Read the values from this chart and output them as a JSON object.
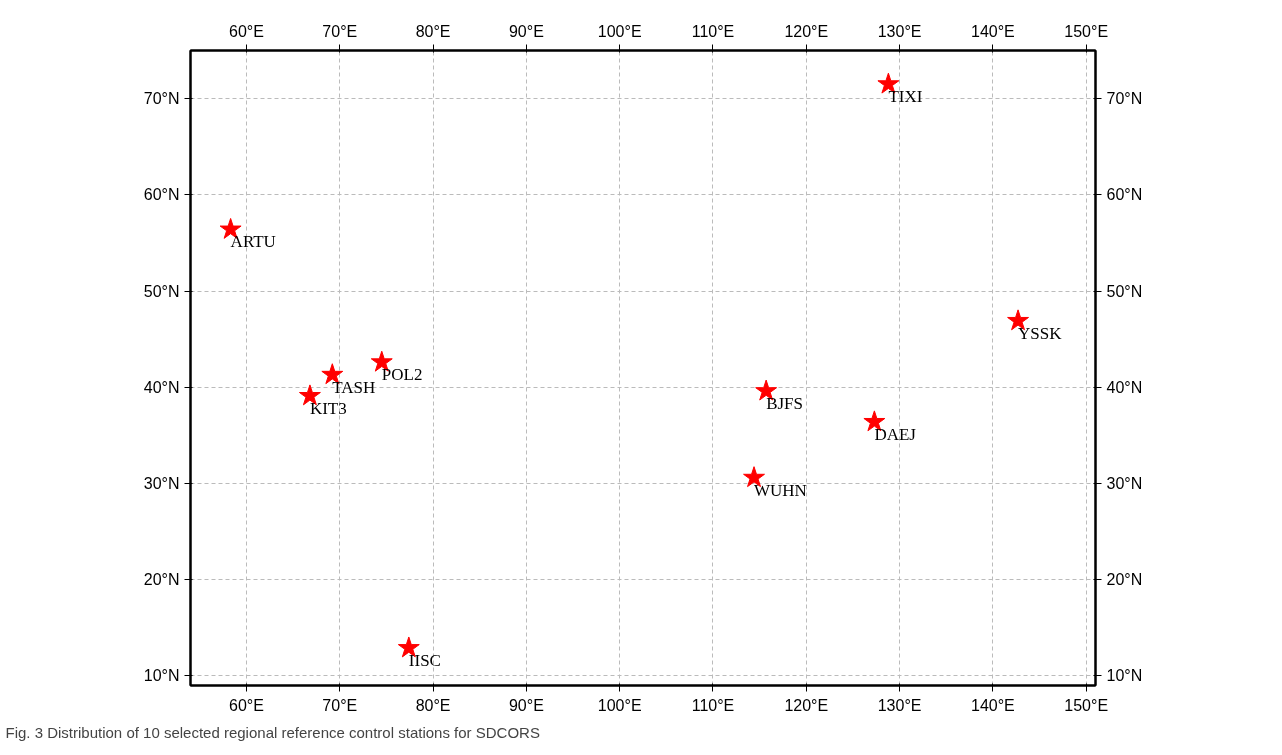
{
  "chart_data": {
    "type": "scatter",
    "marker": "star",
    "grid": true,
    "x": [
      128.8,
      58.3,
      142.7,
      74.5,
      69.2,
      66.8,
      115.7,
      127.3,
      114.4,
      77.4
    ],
    "series": [
      {
        "color": "#ff0000",
        "values": [
          71.5,
          56.4,
          46.9,
          42.6,
          41.3,
          39.1,
          39.6,
          36.4,
          30.6,
          12.9
        ]
      }
    ],
    "xlim": [
      54,
      151
    ],
    "ylim": [
      9,
      75
    ],
    "xticks": [
      {
        "value": 60,
        "label": "60°E"
      },
      {
        "value": 70,
        "label": "70°E"
      },
      {
        "value": 80,
        "label": "80°E"
      },
      {
        "value": 90,
        "label": "90°E"
      },
      {
        "value": 100,
        "label": "100°E"
      },
      {
        "value": 110,
        "label": "110°E"
      },
      {
        "value": 120,
        "label": "120°E"
      },
      {
        "value": 130,
        "label": "130°E"
      },
      {
        "value": 140,
        "label": "140°E"
      },
      {
        "value": 150,
        "label": "150°E"
      }
    ],
    "x2lim": [
      54,
      151
    ],
    "x2ticks": [
      {
        "value": 60,
        "label": "60°E"
      },
      {
        "value": 70,
        "label": "70°E"
      },
      {
        "value": 80,
        "label": "80°E"
      },
      {
        "value": 90,
        "label": "90°E"
      },
      {
        "value": 100,
        "label": "100°E"
      },
      {
        "value": 110,
        "label": "110°E"
      },
      {
        "value": 120,
        "label": "120°E"
      },
      {
        "value": 130,
        "label": "130°E"
      },
      {
        "value": 140,
        "label": "140°E"
      },
      {
        "value": 150,
        "label": "150°E"
      }
    ],
    "yticks": [
      {
        "value": 10,
        "label": "10°N"
      },
      {
        "value": 20,
        "label": "20°N"
      },
      {
        "value": 30,
        "label": "30°N"
      },
      {
        "value": 40,
        "label": "40°N"
      },
      {
        "value": 50,
        "label": "50°N"
      },
      {
        "value": 60,
        "label": "60°N"
      },
      {
        "value": 70,
        "label": "70°N"
      }
    ],
    "y2lim": [
      9,
      75
    ],
    "y2ticks": [
      {
        "value": 10,
        "label": "10°N"
      },
      {
        "value": 20,
        "label": "20°N"
      },
      {
        "value": 30,
        "label": "30°N"
      },
      {
        "value": 40,
        "label": "40°N"
      },
      {
        "value": 50,
        "label": "50°N"
      },
      {
        "value": 60,
        "label": "60°N"
      },
      {
        "value": 70,
        "label": "70°N"
      }
    ],
    "annotations": [
      {
        "text": "TIXI",
        "x": 128.8,
        "y": 71.5
      },
      {
        "text": "ARTU",
        "x": 58.3,
        "y": 56.4
      },
      {
        "text": "YSSK",
        "x": 142.7,
        "y": 46.9
      },
      {
        "text": "POL2",
        "x": 74.5,
        "y": 42.6
      },
      {
        "text": "TASH",
        "x": 69.2,
        "y": 41.3
      },
      {
        "text": "KIT3",
        "x": 66.8,
        "y": 39.1
      },
      {
        "text": "BJFS",
        "x": 115.7,
        "y": 39.6
      },
      {
        "text": "DAEJ",
        "x": 127.3,
        "y": 36.4
      },
      {
        "text": "WUHN",
        "x": 114.4,
        "y": 30.6
      },
      {
        "text": "IISC",
        "x": 77.4,
        "y": 12.9
      },
      "Fig. 3  Distribution of 10 selected regional reference control stations for SDCORS"
    ]
  }
}
